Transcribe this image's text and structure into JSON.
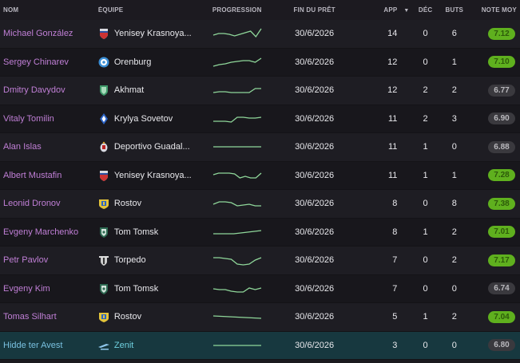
{
  "header": {
    "name": "NOM",
    "team": "ÉQUIPE",
    "progression": "PROGRESSION",
    "loan_end": "FIN DU PRÊT",
    "app": "APP",
    "sort_indicator": "▼",
    "dec": "DÉC",
    "goals": "BUTS",
    "avg_rating": "NOTE MOY"
  },
  "colors": {
    "good_rating": "#5fb01e",
    "neutral_rating": "#3a393e",
    "player_link": "#c07fd6",
    "selected_row": "#17383f",
    "sparkline": "#8fd79a"
  },
  "rows": [
    {
      "name": "Michael González",
      "team": "Yenisey Krasnoya...",
      "team_icon": "yenisey-crest-icon",
      "spark": [
        10,
        8,
        8,
        9,
        11,
        9,
        7,
        5,
        12,
        2
      ],
      "loan_end": "30/6/2026",
      "app": "14",
      "dec": "0",
      "goals": "6",
      "rating": "7.12",
      "rating_class": "good"
    },
    {
      "name": "Sergey Chinarev",
      "team": "Orenburg",
      "team_icon": "orenburg-crest-icon",
      "spark": [
        13,
        11,
        10,
        8,
        7,
        6,
        6,
        8,
        3
      ],
      "loan_end": "30/6/2026",
      "app": "12",
      "dec": "0",
      "goals": "1",
      "rating": "7.10",
      "rating_class": "good"
    },
    {
      "name": "Dmitry Davydov",
      "team": "Akhmat",
      "team_icon": "akhmat-crest-icon",
      "spark": [
        11,
        10,
        10,
        11,
        11,
        11,
        11,
        6,
        6
      ],
      "loan_end": "30/6/2026",
      "app": "12",
      "dec": "2",
      "goals": "2",
      "rating": "6.77",
      "rating_class": "neutral"
    },
    {
      "name": "Vitaly Tomilin",
      "team": "Krylya Sovetov",
      "team_icon": "krylya-sovetov-crest-icon",
      "spark": [
        11,
        11,
        11,
        12,
        6,
        6,
        7,
        7,
        6
      ],
      "loan_end": "30/6/2026",
      "app": "11",
      "dec": "2",
      "goals": "3",
      "rating": "6.90",
      "rating_class": "neutral"
    },
    {
      "name": "Alan Islas",
      "team": "Deportivo Guadal...",
      "team_icon": "guadalajara-crest-icon",
      "spark": [
        8,
        8,
        8,
        8,
        8,
        8,
        8,
        8,
        8
      ],
      "loan_end": "30/6/2026",
      "app": "11",
      "dec": "1",
      "goals": "0",
      "rating": "6.88",
      "rating_class": "neutral"
    },
    {
      "name": "Albert Mustafin",
      "team": "Yenisey Krasnoya...",
      "team_icon": "yenisey-crest-icon",
      "spark": [
        7,
        5,
        5,
        5,
        6,
        11,
        9,
        11,
        11,
        5
      ],
      "loan_end": "30/6/2026",
      "app": "11",
      "dec": "1",
      "goals": "1",
      "rating": "7.28",
      "rating_class": "good"
    },
    {
      "name": "Leonid Dronov",
      "team": "Rostov",
      "team_icon": "rostov-crest-icon",
      "spark": [
        9,
        6,
        6,
        7,
        11,
        10,
        9,
        11,
        11
      ],
      "loan_end": "30/6/2026",
      "app": "8",
      "dec": "0",
      "goals": "8",
      "rating": "7.38",
      "rating_class": "good"
    },
    {
      "name": "Evgeny Marchenko",
      "team": "Tom Tomsk",
      "team_icon": "tom-tomsk-crest-icon",
      "spark": [
        10,
        10,
        10,
        10,
        9,
        8,
        7,
        6
      ],
      "loan_end": "30/6/2026",
      "app": "8",
      "dec": "1",
      "goals": "2",
      "rating": "7.01",
      "rating_class": "good"
    },
    {
      "name": "Petr Pavlov",
      "team": "Torpedo",
      "team_icon": "torpedo-crest-icon",
      "spark": [
        5,
        5,
        6,
        7,
        13,
        14,
        13,
        8,
        5
      ],
      "loan_end": "30/6/2026",
      "app": "7",
      "dec": "0",
      "goals": "2",
      "rating": "7.17",
      "rating_class": "good"
    },
    {
      "name": "Evgeny Kim",
      "team": "Tom Tomsk",
      "team_icon": "tom-tomsk-crest-icon",
      "spark": [
        8,
        9,
        9,
        11,
        12,
        12,
        7,
        9,
        7
      ],
      "loan_end": "30/6/2026",
      "app": "7",
      "dec": "0",
      "goals": "0",
      "rating": "6.74",
      "rating_class": "neutral"
    },
    {
      "name": "Tomas Silhart",
      "team": "Rostov",
      "team_icon": "rostov-crest-icon",
      "spark": [
        7,
        8,
        9,
        10
      ],
      "loan_end": "30/6/2026",
      "app": "5",
      "dec": "1",
      "goals": "2",
      "rating": "7.04",
      "rating_class": "good"
    },
    {
      "name": "Hidde ter Avest",
      "team": "Zenit",
      "team_icon": "zenit-crest-icon",
      "spark": [
        8,
        8,
        8,
        8
      ],
      "loan_end": "30/6/2026",
      "app": "3",
      "dec": "0",
      "goals": "0",
      "rating": "6.80",
      "rating_class": "neutral",
      "selected": true
    }
  ]
}
